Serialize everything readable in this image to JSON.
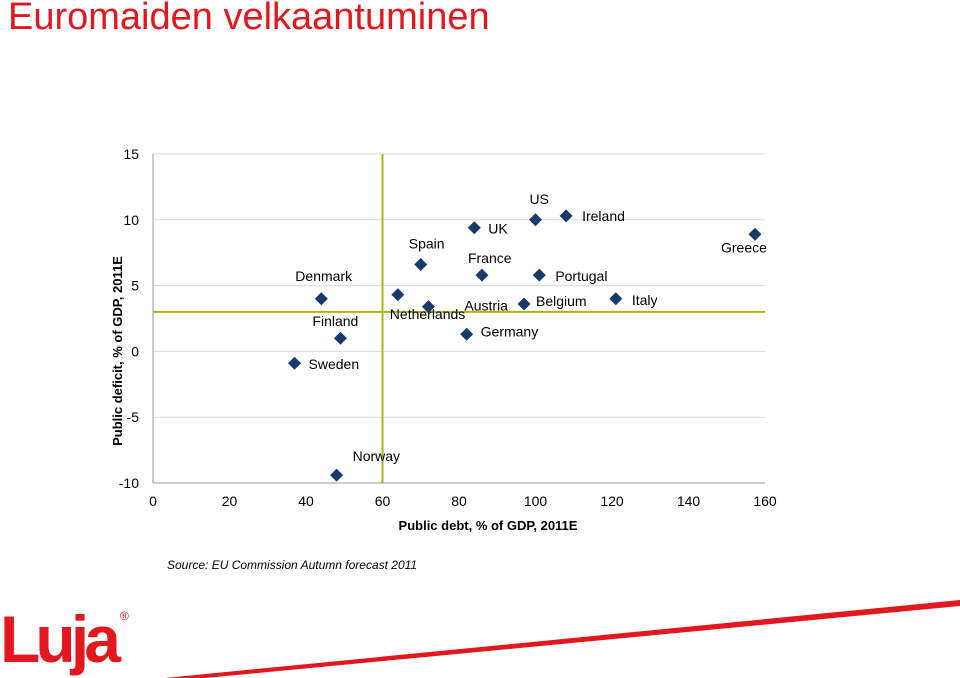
{
  "page_title": "Euromaiden velkaantuminen",
  "source": "Source: EU Commission Autumn forecast 2011",
  "logo": {
    "text": "Luja",
    "registered": "®"
  },
  "colors": {
    "title": "#e3171e",
    "marker": "#173a6b",
    "refline": "#a9b51b",
    "logo": "#e3171e"
  },
  "chart_data": {
    "type": "scatter",
    "title": "",
    "xlabel": "Public debt, % of GDP, 2011E",
    "ylabel": "Public deficit, % of GDP, 2011E",
    "xlim": [
      0,
      160
    ],
    "ylim": [
      -10,
      15
    ],
    "xticks": [
      0,
      20,
      40,
      60,
      80,
      100,
      120,
      140,
      160
    ],
    "yticks": [
      -10,
      -5,
      0,
      5,
      10,
      15
    ],
    "grid": "horizontal",
    "reference_lines": {
      "debt": 60,
      "deficit": 3
    },
    "points": [
      {
        "label": "Norway",
        "x": 48,
        "y": -9.4
      },
      {
        "label": "Sweden",
        "x": 37,
        "y": -0.9
      },
      {
        "label": "Finland",
        "x": 49,
        "y": 1.0
      },
      {
        "label": "Denmark",
        "x": 44,
        "y": 4.0
      },
      {
        "label": "Spain",
        "x": 70,
        "y": 6.6
      },
      {
        "label": "Austria",
        "x": 72,
        "y": 3.4
      },
      {
        "label": "Netherlands",
        "x": 64,
        "y": 4.3
      },
      {
        "label": "Germany",
        "x": 82,
        "y": 1.3
      },
      {
        "label": "UK",
        "x": 84,
        "y": 9.4
      },
      {
        "label": "France",
        "x": 86,
        "y": 5.8
      },
      {
        "label": "US",
        "x": 100,
        "y": 10.0
      },
      {
        "label": "Ireland",
        "x": 108,
        "y": 10.3
      },
      {
        "label": "Portugal",
        "x": 101,
        "y": 5.8
      },
      {
        "label": "Belgium",
        "x": 97,
        "y": 3.6
      },
      {
        "label": "Italy",
        "x": 121,
        "y": 4.0
      },
      {
        "label": "Greece",
        "x": 162,
        "y": 8.9
      }
    ]
  }
}
